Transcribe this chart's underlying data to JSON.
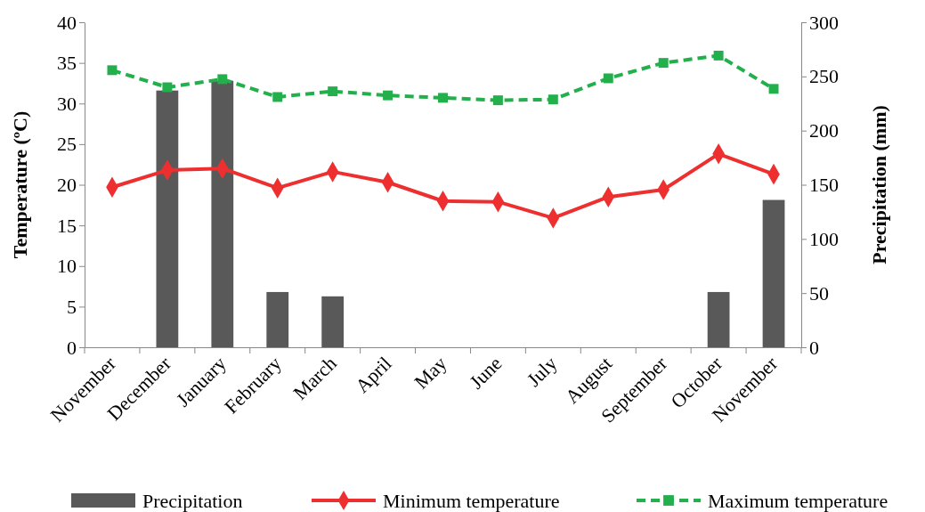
{
  "chart_data": {
    "type": "line",
    "ylabel": "Temperature (ºC)",
    "y2label": "Precipitation (mm)",
    "categories": [
      "November",
      "December",
      "January",
      "February",
      "March",
      "April",
      "May",
      "June",
      "July",
      "August",
      "September",
      "October",
      "November"
    ],
    "ylim": [
      0,
      40
    ],
    "yticks": [
      0,
      5,
      10,
      15,
      20,
      25,
      30,
      35,
      40
    ],
    "y2lim": [
      0,
      300
    ],
    "y2ticks": [
      0,
      50,
      100,
      150,
      200,
      250,
      300
    ],
    "legend": "bottom",
    "grid": false,
    "series": [
      {
        "name": "Precipitation",
        "type": "bar",
        "axis": "y2",
        "color": "#595959",
        "values": [
          0,
          237,
          246,
          51,
          47,
          0,
          0,
          0,
          0,
          0,
          0,
          51,
          136
        ]
      },
      {
        "name": "Minimum temperature",
        "color": "#ee2f2f",
        "marker": "diamond",
        "line_style": "solid",
        "values": [
          19.7,
          21.8,
          22.0,
          19.6,
          21.6,
          20.3,
          18.0,
          17.9,
          15.9,
          18.5,
          19.4,
          23.8,
          21.3
        ]
      },
      {
        "name": "Maximum temperature",
        "color": "#23b04c",
        "marker": "square",
        "line_style": "dashed",
        "values": [
          34.1,
          32.0,
          33.0,
          30.8,
          31.5,
          31.0,
          30.7,
          30.4,
          30.5,
          33.1,
          35.0,
          35.9,
          31.8
        ]
      }
    ]
  }
}
